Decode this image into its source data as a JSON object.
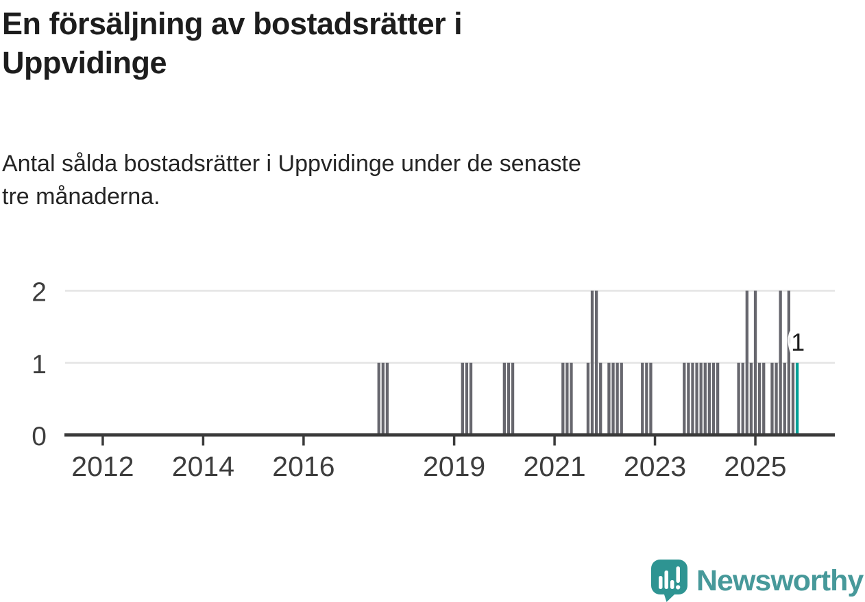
{
  "title_lines": [
    "En försäljning av bostadsrätter i",
    "Uppvidinge"
  ],
  "subtitle_lines": [
    "Antal sålda bostadsrätter i Uppvidinge under de senaste",
    "tre månaderna."
  ],
  "logo": {
    "text": "Newsworthy"
  },
  "colors": {
    "bar": "#67676e",
    "highlight": "#00a096",
    "grid": "#e4e4e4",
    "axis": "#3a3a3a",
    "tick_label": "#3d3d3d",
    "annotation_text": "#1d1d1d",
    "leader": "#ffffff",
    "logo_teal": "#2e9492",
    "logo_text_teal": "#47999a"
  },
  "chart_data": {
    "type": "bar",
    "title": "En försäljning av bostadsrätter i Uppvidinge",
    "subtitle": "Antal sålda bostadsrätter i Uppvidinge under de senaste tre månaderna.",
    "ylim": [
      0,
      2
    ],
    "y_ticks": [
      0,
      1,
      2
    ],
    "grid": "horizontal",
    "x_domain": [
      "2011-04",
      "2026-08"
    ],
    "x_tick_years": [
      2012,
      2014,
      2016,
      2019,
      2021,
      2023,
      2025
    ],
    "default_value": 0,
    "bars": [
      [
        "2017-07",
        1
      ],
      [
        "2017-08",
        1
      ],
      [
        "2017-09",
        1
      ],
      [
        "2019-03",
        1
      ],
      [
        "2019-04",
        1
      ],
      [
        "2019-05",
        1
      ],
      [
        "2020-01",
        1
      ],
      [
        "2020-02",
        1
      ],
      [
        "2020-03",
        1
      ],
      [
        "2021-03",
        1
      ],
      [
        "2021-04",
        1
      ],
      [
        "2021-05",
        1
      ],
      [
        "2021-09",
        1
      ],
      [
        "2021-10",
        2
      ],
      [
        "2021-11",
        2
      ],
      [
        "2021-12",
        1
      ],
      [
        "2022-02",
        1
      ],
      [
        "2022-03",
        1
      ],
      [
        "2022-04",
        1
      ],
      [
        "2022-05",
        1
      ],
      [
        "2022-10",
        1
      ],
      [
        "2022-11",
        1
      ],
      [
        "2022-12",
        1
      ],
      [
        "2023-08",
        1
      ],
      [
        "2023-09",
        1
      ],
      [
        "2023-10",
        1
      ],
      [
        "2023-11",
        1
      ],
      [
        "2023-12",
        1
      ],
      [
        "2024-01",
        1
      ],
      [
        "2024-02",
        1
      ],
      [
        "2024-03",
        1
      ],
      [
        "2024-04",
        1
      ],
      [
        "2024-09",
        1
      ],
      [
        "2024-10",
        1
      ],
      [
        "2024-11",
        2
      ],
      [
        "2024-12",
        1
      ],
      [
        "2025-01",
        2
      ],
      [
        "2025-02",
        1
      ],
      [
        "2025-03",
        1
      ],
      [
        "2025-05",
        1
      ],
      [
        "2025-06",
        1
      ],
      [
        "2025-07",
        2
      ],
      [
        "2025-08",
        1
      ],
      [
        "2025-09",
        2
      ],
      [
        "2025-10",
        1
      ],
      [
        "2025-11",
        1
      ]
    ],
    "highlight": {
      "month": "2025-11",
      "value": 1,
      "label": "1"
    },
    "legend": null
  }
}
